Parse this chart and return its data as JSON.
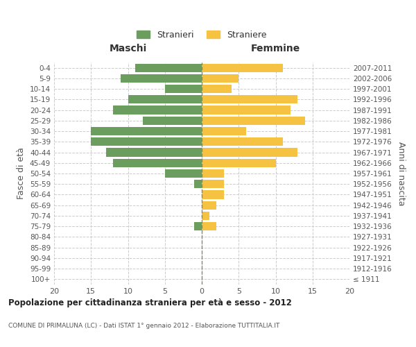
{
  "age_groups": [
    "100+",
    "95-99",
    "90-94",
    "85-89",
    "80-84",
    "75-79",
    "70-74",
    "65-69",
    "60-64",
    "55-59",
    "50-54",
    "45-49",
    "40-44",
    "35-39",
    "30-34",
    "25-29",
    "20-24",
    "15-19",
    "10-14",
    "5-9",
    "0-4"
  ],
  "birth_years": [
    "≤ 1911",
    "1912-1916",
    "1917-1921",
    "1922-1926",
    "1927-1931",
    "1932-1936",
    "1937-1941",
    "1942-1946",
    "1947-1951",
    "1952-1956",
    "1957-1961",
    "1962-1966",
    "1967-1971",
    "1972-1976",
    "1977-1981",
    "1982-1986",
    "1987-1991",
    "1992-1996",
    "1997-2001",
    "2002-2006",
    "2007-2011"
  ],
  "males": [
    0,
    0,
    0,
    0,
    0,
    1,
    0,
    0,
    0,
    1,
    5,
    12,
    13,
    15,
    15,
    8,
    12,
    10,
    5,
    11,
    9
  ],
  "females": [
    0,
    0,
    0,
    0,
    0,
    2,
    1,
    2,
    3,
    3,
    3,
    10,
    13,
    11,
    6,
    14,
    12,
    13,
    4,
    5,
    11
  ],
  "male_color": "#6b9e5e",
  "female_color": "#f5c242",
  "background_color": "#ffffff",
  "grid_color": "#cccccc",
  "title": "Popolazione per cittadinanza straniera per età e sesso - 2012",
  "subtitle": "COMUNE DI PRIMALUNA (LC) - Dati ISTAT 1° gennaio 2012 - Elaborazione TUTTITALIA.IT",
  "ylabel_left": "Fasce di età",
  "ylabel_right": "Anni di nascita",
  "xlabel_left": "Maschi",
  "xlabel_right": "Femmine",
  "legend_male": "Stranieri",
  "legend_female": "Straniere",
  "xlim": 20,
  "bar_height": 0.8
}
